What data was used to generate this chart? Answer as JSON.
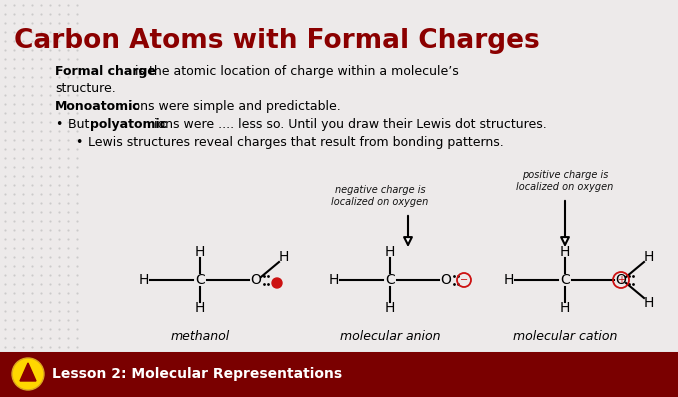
{
  "title": "Carbon Atoms with Formal Charges",
  "title_color": "#8B0000",
  "bg_color": "#EDEAEA",
  "footer_bg": "#7A0000",
  "footer_text": "Lesson 2: Molecular Representations",
  "footer_text_color": "#FFFFFF",
  "dot_color": "#C8C0C0",
  "charge_color": "#CC1111",
  "text_color": "#111111",
  "line1_bold": "Formal charge",
  "line1_rest": " is the atomic location of charge within a molecule’s",
  "line1b": "structure.",
  "line2_bold": "Monoatomic",
  "line2_rest": " ions were simple and predictable.",
  "line3_pre": "But ",
  "line3_bold": "polyatomic",
  "line3_rest": " ions were .... less so. Until you draw their Lewis dot structures.",
  "line4": "Lewis structures reveal charges that result from bonding patterns.",
  "ann1": "negative charge is\nlocalized on oxygen",
  "ann2": "positive charge is\nlocalized on oxygen",
  "label1": "methanol",
  "label2": "molecular anion",
  "label3": "molecular cation"
}
